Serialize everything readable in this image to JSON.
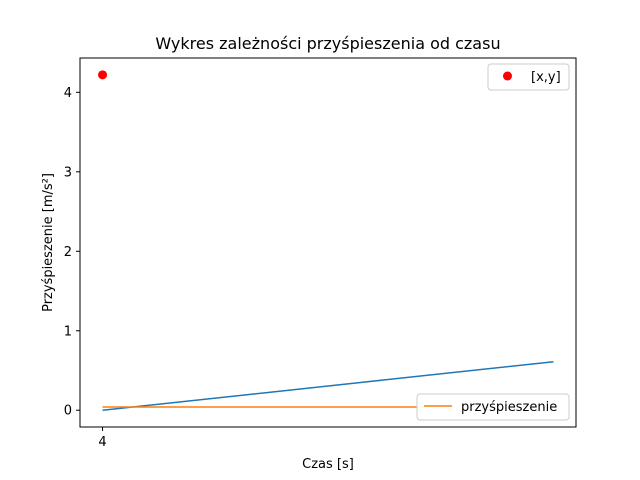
{
  "chart_data": {
    "type": "line",
    "title": "Wykres zależności przyśpieszenia od czasu",
    "xlabel": "Czas [s]",
    "ylabel": "Przyśpieszenie [m/s²]",
    "xlim": [
      3.99875,
      4.02625
    ],
    "ylim": [
      -0.211,
      4.432
    ],
    "x_ticks": [
      4
    ],
    "x_tick_labels": [
      "4"
    ],
    "y_ticks": [
      0,
      1,
      2,
      3,
      4
    ],
    "y_tick_labels": [
      "0",
      "1",
      "2",
      "3",
      "4"
    ],
    "grid": false,
    "colors": {
      "line_a": "#1f77b4",
      "line_b": "#ff7f0e",
      "point": "#ff0000",
      "axes": "#000000"
    },
    "series": [
      {
        "values": [
          [
            4.0,
            0.0
          ],
          [
            4.025,
            0.61
          ]
        ],
        "style": "line",
        "color": "#1f77b4"
      },
      {
        "name": "przyśpieszenie",
        "values": [
          [
            4.0,
            0.04
          ],
          [
            4.025,
            0.04
          ]
        ],
        "style": "line",
        "color": "#ff7f0e"
      },
      {
        "name": "[x,y]",
        "values": [
          [
            4.0,
            4.22
          ]
        ],
        "style": "marker",
        "color": "#ff0000"
      }
    ],
    "legends": [
      {
        "location": "upper right",
        "entries": [
          "[x,y]"
        ]
      },
      {
        "location": "lower right",
        "entries": [
          "przyśpieszenie"
        ]
      }
    ]
  }
}
